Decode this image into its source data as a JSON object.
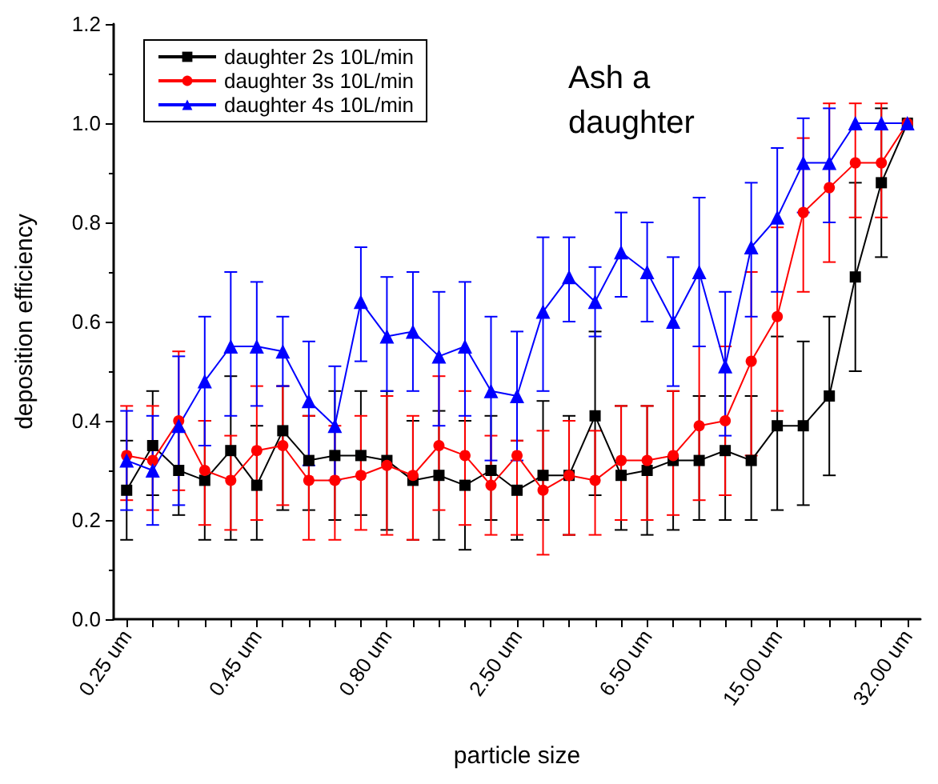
{
  "chart_data": {
    "type": "line",
    "title": "Ash a daughter",
    "xlabel": "particle size",
    "ylabel": "deposition efficiency",
    "categories": [
      "0.25 um",
      null,
      null,
      null,
      null,
      "0.45 um",
      null,
      null,
      null,
      null,
      "0.80 um",
      null,
      null,
      null,
      null,
      "2.50 um",
      null,
      null,
      null,
      null,
      "6.50 um",
      null,
      null,
      null,
      null,
      "15.00 um",
      null,
      null,
      null,
      null,
      "32.00 um"
    ],
    "ylim": [
      0,
      1.2
    ],
    "yticks": [
      {
        "value": 0,
        "label": "0.0"
      },
      {
        "value": 0.2,
        "label": "0.2"
      },
      {
        "value": 0.4,
        "label": "0.4"
      },
      {
        "value": 0.6,
        "label": "0.6"
      },
      {
        "value": 0.8,
        "label": "0.8"
      },
      {
        "value": 1.0,
        "label": "1.0"
      },
      {
        "value": 1.2,
        "label": "1.2"
      }
    ],
    "grid": false,
    "legend": "top left",
    "line_style": "solid",
    "series": [
      {
        "name": "daughter 2s 10L/min",
        "color": "#000000",
        "marker": "square",
        "values": [
          0.26,
          0.35,
          0.3,
          0.28,
          0.34,
          0.27,
          0.38,
          0.32,
          0.33,
          0.33,
          0.32,
          0.28,
          0.29,
          0.27,
          0.3,
          0.26,
          0.29,
          0.29,
          0.41,
          0.29,
          0.3,
          0.32,
          0.32,
          0.34,
          0.32,
          0.39,
          0.39,
          0.45,
          0.69,
          0.88,
          1.0
        ],
        "errors": [
          [
            0.16,
            0.36
          ],
          [
            0.25,
            0.46
          ],
          [
            0.21,
            0.38
          ],
          [
            0.16,
            0.4
          ],
          [
            0.16,
            0.49
          ],
          [
            0.16,
            0.39
          ],
          [
            0.22,
            0.47
          ],
          [
            0.22,
            0.41
          ],
          [
            0.2,
            0.46
          ],
          [
            0.21,
            0.46
          ],
          [
            0.18,
            0.46
          ],
          [
            0.16,
            0.4
          ],
          [
            0.16,
            0.42
          ],
          [
            0.14,
            0.4
          ],
          [
            0.2,
            0.41
          ],
          [
            0.16,
            0.36
          ],
          [
            0.2,
            0.44
          ],
          [
            0.17,
            0.41
          ],
          [
            0.25,
            0.58
          ],
          [
            0.18,
            0.43
          ],
          [
            0.17,
            0.43
          ],
          [
            0.18,
            0.46
          ],
          [
            0.2,
            0.45
          ],
          [
            0.2,
            0.45
          ],
          [
            0.2,
            0.45
          ],
          [
            0.22,
            0.57
          ],
          [
            0.23,
            0.56
          ],
          [
            0.29,
            0.61
          ],
          [
            0.5,
            0.88
          ],
          [
            0.73,
            1.03
          ],
          null
        ]
      },
      {
        "name": "daughter 3s 10L/min",
        "color": "#ff0000",
        "marker": "circle",
        "values": [
          0.33,
          0.32,
          0.4,
          0.3,
          0.28,
          0.34,
          0.35,
          0.28,
          0.28,
          0.29,
          0.31,
          0.29,
          0.35,
          0.33,
          0.27,
          0.33,
          0.26,
          0.29,
          0.28,
          0.32,
          0.32,
          0.33,
          0.39,
          0.4,
          0.52,
          0.61,
          0.82,
          0.87,
          0.92,
          0.92,
          1.0
        ],
        "errors": [
          [
            0.24,
            0.43
          ],
          [
            0.22,
            0.43
          ],
          [
            0.26,
            0.54
          ],
          [
            0.19,
            0.4
          ],
          [
            0.18,
            0.37
          ],
          [
            0.2,
            0.47
          ],
          [
            0.23,
            0.47
          ],
          [
            0.16,
            0.41
          ],
          [
            0.16,
            0.39
          ],
          [
            0.18,
            0.41
          ],
          [
            0.17,
            0.45
          ],
          [
            0.16,
            0.41
          ],
          [
            0.22,
            0.49
          ],
          [
            0.19,
            0.46
          ],
          [
            0.17,
            0.37
          ],
          [
            0.17,
            0.36
          ],
          [
            0.13,
            0.38
          ],
          [
            0.17,
            0.4
          ],
          [
            0.17,
            0.38
          ],
          [
            0.2,
            0.43
          ],
          [
            0.2,
            0.43
          ],
          [
            0.21,
            0.46
          ],
          [
            0.24,
            0.55
          ],
          [
            0.25,
            0.55
          ],
          [
            0.33,
            0.7
          ],
          [
            0.42,
            0.79
          ],
          [
            0.66,
            0.97
          ],
          [
            0.72,
            1.04
          ],
          [
            0.81,
            1.04
          ],
          [
            0.81,
            1.04
          ],
          null
        ]
      },
      {
        "name": "daughter 4s 10L/min",
        "color": "#0000ff",
        "marker": "triangle",
        "values": [
          0.32,
          0.3,
          0.39,
          0.48,
          0.55,
          0.55,
          0.54,
          0.44,
          0.39,
          0.64,
          0.57,
          0.58,
          0.53,
          0.55,
          0.46,
          0.45,
          0.62,
          0.69,
          0.64,
          0.74,
          0.7,
          0.6,
          0.7,
          0.51,
          0.75,
          0.81,
          0.92,
          0.92,
          1.0,
          1.0,
          1.0
        ],
        "errors": [
          [
            0.22,
            0.42
          ],
          [
            0.19,
            0.41
          ],
          [
            0.23,
            0.53
          ],
          [
            0.35,
            0.61
          ],
          [
            0.41,
            0.7
          ],
          [
            0.43,
            0.68
          ],
          [
            0.47,
            0.61
          ],
          [
            0.31,
            0.56
          ],
          [
            0.28,
            0.51
          ],
          [
            0.52,
            0.75
          ],
          [
            0.46,
            0.69
          ],
          [
            0.46,
            0.7
          ],
          [
            0.39,
            0.66
          ],
          [
            0.41,
            0.68
          ],
          [
            0.32,
            0.61
          ],
          [
            0.32,
            0.58
          ],
          [
            0.46,
            0.77
          ],
          [
            0.6,
            0.77
          ],
          [
            0.57,
            0.71
          ],
          [
            0.65,
            0.82
          ],
          [
            0.6,
            0.8
          ],
          [
            0.47,
            0.73
          ],
          [
            0.55,
            0.85
          ],
          [
            0.37,
            0.66
          ],
          [
            0.61,
            0.88
          ],
          [
            0.66,
            0.95
          ],
          [
            0.82,
            1.01
          ],
          [
            0.8,
            1.03
          ],
          null,
          null,
          null
        ]
      }
    ]
  }
}
